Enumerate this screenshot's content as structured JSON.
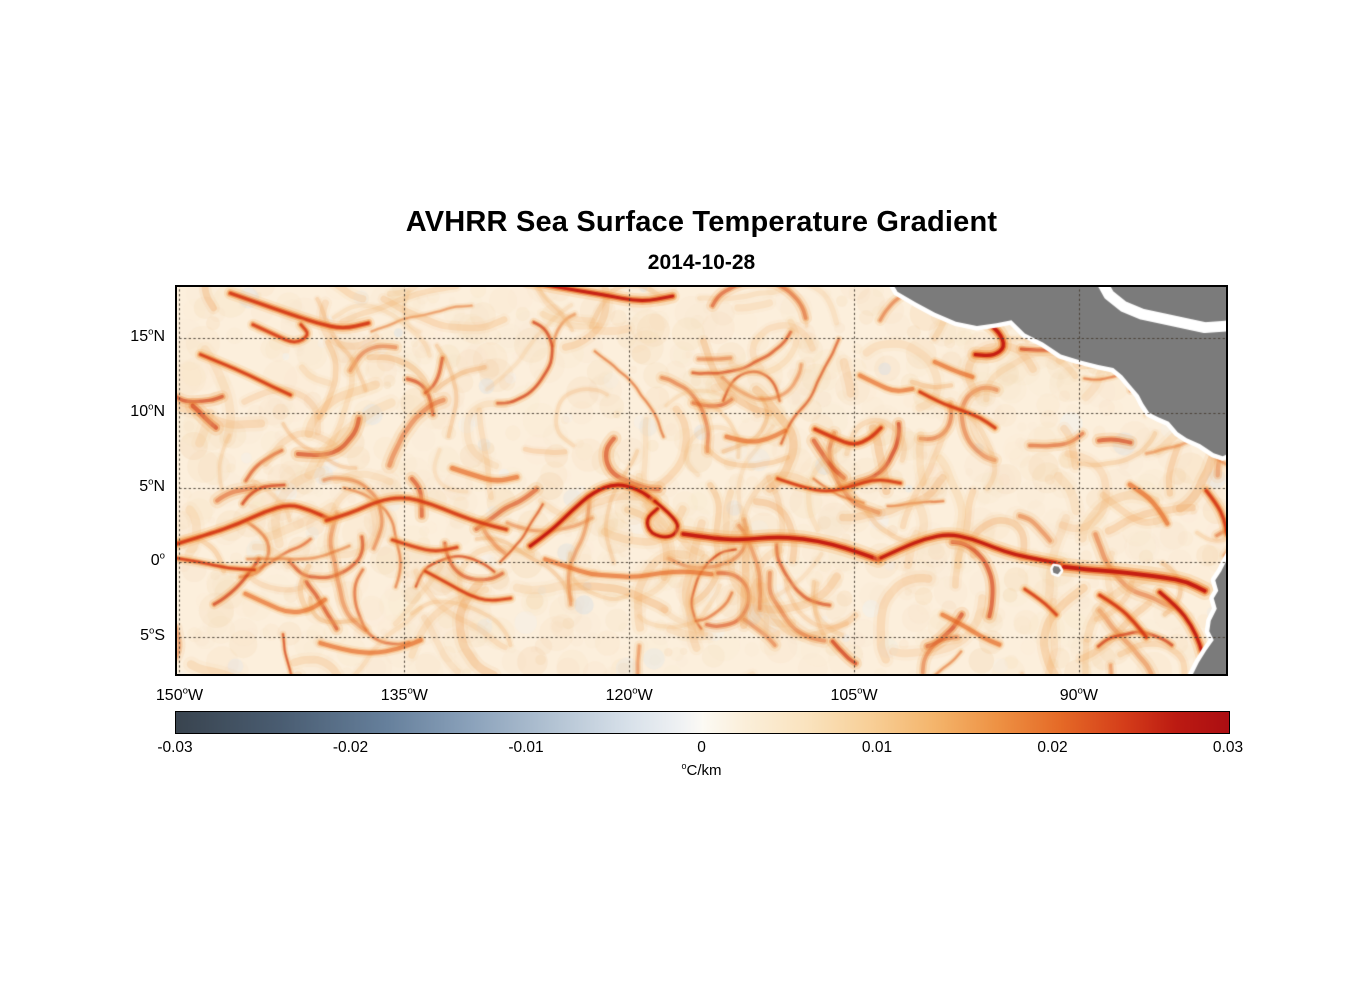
{
  "figure": {
    "title": "AVHRR Sea Surface Temperature Gradient",
    "date": "2014-10-28"
  },
  "deg_symbol": "o",
  "chart_data": {
    "type": "heatmap",
    "title": "AVHRR Sea Surface Temperature Gradient",
    "subtitle": "2014-10-28",
    "xlabel": "",
    "ylabel": "",
    "x_range": [
      -150.3,
      -80.05
    ],
    "y_range": [
      -7.6,
      18.55
    ],
    "x_ticks": [
      {
        "value": -150,
        "num": "150",
        "hemi": "W"
      },
      {
        "value": -135,
        "num": "135",
        "hemi": "W"
      },
      {
        "value": -120,
        "num": "120",
        "hemi": "W"
      },
      {
        "value": -105,
        "num": "105",
        "hemi": "W"
      },
      {
        "value": -90,
        "num": "90",
        "hemi": "W"
      }
    ],
    "y_ticks": [
      {
        "value": 15,
        "num": "15",
        "hemi": "N"
      },
      {
        "value": 10,
        "num": "10",
        "hemi": "N"
      },
      {
        "value": 5,
        "num": "5",
        "hemi": "N"
      },
      {
        "value": 0,
        "num": "0",
        "hemi": ""
      },
      {
        "value": -5,
        "num": "5",
        "hemi": "S"
      }
    ],
    "grid": {
      "color": "rgba(72,62,52,0.95)",
      "dash": [
        1.5,
        3.2
      ]
    },
    "field": {
      "base": "#FCEFDC",
      "mottle": [
        "#F8E3C6",
        "#F6DAB4",
        "#F3CFA0",
        "#F0C38C"
      ],
      "negative_tints": [
        "#EDF1F5",
        "#DFE7EE",
        "#D2DDE8"
      ]
    },
    "colorbar": {
      "min": -0.03,
      "max": 0.03,
      "unit": "C/km",
      "ticks": [
        {
          "value": -0.03,
          "label": "-0.03"
        },
        {
          "value": -0.02,
          "label": "-0.02"
        },
        {
          "value": -0.01,
          "label": "-0.01"
        },
        {
          "value": 0,
          "label": "0"
        },
        {
          "value": 0.01,
          "label": "0.01"
        },
        {
          "value": 0.02,
          "label": "0.02"
        },
        {
          "value": 0.03,
          "label": "0.03"
        }
      ],
      "stops": [
        [
          0.0,
          "#39444F"
        ],
        [
          0.1,
          "#4A5D72"
        ],
        [
          0.2,
          "#66809C"
        ],
        [
          0.28,
          "#8BA2BB"
        ],
        [
          0.36,
          "#B4C4D4"
        ],
        [
          0.43,
          "#D8E1EA"
        ],
        [
          0.48,
          "#F0F2F4"
        ],
        [
          0.5,
          "#FCFAF4"
        ],
        [
          0.54,
          "#FBEFDA"
        ],
        [
          0.6,
          "#FAE3BE"
        ],
        [
          0.66,
          "#F8CF97"
        ],
        [
          0.72,
          "#F4B56C"
        ],
        [
          0.78,
          "#EE9244"
        ],
        [
          0.84,
          "#E56A27"
        ],
        [
          0.9,
          "#D53E1A"
        ],
        [
          0.95,
          "#BC1B12"
        ],
        [
          1.0,
          "#AC0E13"
        ]
      ]
    },
    "fronts": [
      {
        "s": 0.85,
        "w": 1.0,
        "pts": [
          [
            -150.3,
            1.2
          ],
          [
            -148,
            1.9
          ],
          [
            -146,
            2.6
          ],
          [
            -144.3,
            3.4
          ],
          [
            -142.7,
            3.9
          ],
          [
            -141.3,
            3.5
          ],
          [
            -140,
            2.9
          ]
        ]
      },
      {
        "s": 0.7,
        "w": 1.0,
        "pts": [
          [
            -140.2,
            2.8
          ],
          [
            -138.5,
            3.3
          ],
          [
            -136.8,
            4.1
          ],
          [
            -135,
            4.4
          ],
          [
            -133.2,
            3.9
          ],
          [
            -131.5,
            3.2
          ],
          [
            -129.8,
            2.6
          ],
          [
            -128.2,
            2.2
          ]
        ]
      },
      {
        "s": 0.55,
        "w": 0.8,
        "pts": [
          [
            -150.3,
            0.3
          ],
          [
            -148.5,
            0.0
          ],
          [
            -146.8,
            -0.4
          ],
          [
            -145,
            -0.5
          ]
        ]
      },
      {
        "s": 1.0,
        "w": 1.15,
        "pts": [
          [
            -126.6,
            1.1
          ],
          [
            -125.2,
            2.1
          ],
          [
            -123.8,
            3.5
          ],
          [
            -122.4,
            4.7
          ],
          [
            -120.9,
            5.3
          ],
          [
            -119.4,
            4.9
          ],
          [
            -118.3,
            4.1
          ]
        ]
      },
      {
        "s": 0.95,
        "w": 1.0,
        "pts": [
          [
            -118.3,
            4.1
          ],
          [
            -117.2,
            3.2
          ],
          [
            -116.6,
            2.3
          ],
          [
            -117.3,
            1.6
          ],
          [
            -118.6,
            1.9
          ],
          [
            -118.9,
            2.9
          ],
          [
            -118.1,
            3.6
          ]
        ]
      },
      {
        "s": 1.0,
        "w": 1.3,
        "pts": [
          [
            -116.4,
            1.9
          ],
          [
            -114.4,
            1.6
          ],
          [
            -112.4,
            1.5
          ],
          [
            -110.4,
            1.7
          ],
          [
            -108.4,
            1.6
          ],
          [
            -106.4,
            1.2
          ],
          [
            -104.8,
            0.7
          ],
          [
            -103.4,
            0.2
          ]
        ]
      },
      {
        "s": 0.95,
        "w": 1.2,
        "pts": [
          [
            -103.2,
            0.3
          ],
          [
            -101.7,
            1.0
          ],
          [
            -100.2,
            1.6
          ],
          [
            -98.7,
            1.9
          ],
          [
            -97.2,
            1.6
          ],
          [
            -95.7,
            1.0
          ],
          [
            -94.2,
            0.5
          ],
          [
            -92.7,
            0.2
          ],
          [
            -91.2,
            -0.1
          ]
        ]
      },
      {
        "s": 1.0,
        "w": 1.4,
        "pts": [
          [
            -91.0,
            -0.3
          ],
          [
            -89.3,
            -0.5
          ],
          [
            -87.6,
            -0.6
          ],
          [
            -86.0,
            -0.8
          ],
          [
            -84.3,
            -1.0
          ],
          [
            -82.8,
            -1.3
          ],
          [
            -81.6,
            -1.9
          ]
        ]
      },
      {
        "s": 0.5,
        "w": 0.8,
        "pts": [
          [
            -125.6,
            0.2
          ],
          [
            -124.1,
            -0.3
          ],
          [
            -122.6,
            -0.8
          ],
          [
            -121.1,
            -0.9
          ],
          [
            -119.6,
            -1.0
          ],
          [
            -117.9,
            -0.7
          ],
          [
            -116.2,
            -0.6
          ],
          [
            -114.5,
            -0.8
          ]
        ]
      },
      {
        "s": 0.9,
        "w": 1.1,
        "pts": [
          [
            -126.8,
            18.8
          ],
          [
            -124.2,
            18.3
          ],
          [
            -121.7,
            17.9
          ],
          [
            -119.2,
            17.4
          ],
          [
            -117.1,
            17.8
          ]
        ]
      },
      {
        "s": 0.8,
        "w": 1.0,
        "pts": [
          [
            -146.6,
            18.0
          ],
          [
            -144.6,
            17.3
          ],
          [
            -142.6,
            16.6
          ],
          [
            -140.8,
            16.0
          ],
          [
            -139.1,
            15.6
          ],
          [
            -137.4,
            16.0
          ]
        ]
      },
      {
        "s": 0.7,
        "w": 0.9,
        "pts": [
          [
            -148.6,
            13.9
          ],
          [
            -146.9,
            13.2
          ],
          [
            -145.3,
            12.5
          ],
          [
            -143.9,
            11.8
          ],
          [
            -142.6,
            11.2
          ]
        ]
      },
      {
        "s": 0.6,
        "w": 0.9,
        "pts": [
          [
            -145.1,
            15.9
          ],
          [
            -143.6,
            15.2
          ],
          [
            -142.3,
            14.6
          ],
          [
            -141.3,
            15.2
          ],
          [
            -141.9,
            15.9
          ]
        ]
      },
      {
        "s": 1.0,
        "w": 1.25,
        "pts": [
          [
            -97.6,
            16.7
          ],
          [
            -96.3,
            16.2
          ],
          [
            -95.3,
            15.4
          ],
          [
            -94.9,
            14.4
          ],
          [
            -95.7,
            13.8
          ],
          [
            -96.9,
            13.9
          ]
        ]
      },
      {
        "s": 0.7,
        "w": 0.9,
        "pts": [
          [
            -100.6,
            11.4
          ],
          [
            -99.3,
            10.7
          ],
          [
            -97.9,
            10.2
          ],
          [
            -96.6,
            9.7
          ],
          [
            -95.6,
            9.0
          ]
        ]
      },
      {
        "s": 0.85,
        "w": 1.0,
        "pts": [
          [
            -107.6,
            8.9
          ],
          [
            -106.3,
            8.3
          ],
          [
            -105.0,
            7.8
          ],
          [
            -103.9,
            8.3
          ],
          [
            -103.2,
            9.0
          ]
        ]
      },
      {
        "s": 0.6,
        "w": 0.85,
        "pts": [
          [
            -110.1,
            5.6
          ],
          [
            -108.4,
            5.0
          ],
          [
            -106.7,
            4.7
          ],
          [
            -105.1,
            5.1
          ],
          [
            -103.5,
            5.6
          ],
          [
            -101.9,
            5.3
          ]
        ]
      },
      {
        "s": 0.8,
        "w": 1.0,
        "pts": [
          [
            -88.6,
            -2.2
          ],
          [
            -87.3,
            -3.0
          ],
          [
            -86.3,
            -4.0
          ],
          [
            -85.5,
            -5.0
          ]
        ]
      },
      {
        "s": 0.9,
        "w": 1.15,
        "pts": [
          [
            -84.6,
            -2.0
          ],
          [
            -83.4,
            -3.0
          ],
          [
            -82.5,
            -4.2
          ],
          [
            -81.9,
            -5.5
          ],
          [
            -81.6,
            -6.8
          ]
        ]
      },
      {
        "s": 0.5,
        "w": 0.8,
        "pts": [
          [
            -140.6,
            -5.4
          ],
          [
            -138.9,
            -5.9
          ],
          [
            -137.1,
            -6.1
          ],
          [
            -135.4,
            -5.8
          ],
          [
            -133.9,
            -5.2
          ]
        ]
      },
      {
        "s": 0.55,
        "w": 0.8,
        "pts": [
          [
            -133.6,
            -0.6
          ],
          [
            -132.1,
            -1.4
          ],
          [
            -130.7,
            -2.2
          ],
          [
            -129.4,
            -2.6
          ],
          [
            -127.9,
            -2.4
          ]
        ]
      },
      {
        "s": 0.45,
        "w": 0.8,
        "pts": [
          [
            -145.6,
            -2.1
          ],
          [
            -144.1,
            -2.8
          ],
          [
            -142.7,
            -3.4
          ],
          [
            -141.3,
            -3.2
          ],
          [
            -140.3,
            -2.5
          ]
        ]
      },
      {
        "s": 0.5,
        "w": 0.8,
        "pts": [
          [
            -99.1,
            -3.5
          ],
          [
            -97.7,
            -4.2
          ],
          [
            -96.5,
            -5.0
          ],
          [
            -95.3,
            -5.5
          ]
        ]
      },
      {
        "s": 0.55,
        "w": 0.85,
        "pts": [
          [
            -93.6,
            -1.8
          ],
          [
            -92.4,
            -2.6
          ],
          [
            -91.5,
            -3.5
          ]
        ]
      },
      {
        "s": 0.5,
        "w": 0.85,
        "pts": [
          [
            -86.6,
            5.2
          ],
          [
            -85.5,
            4.5
          ],
          [
            -84.7,
            3.6
          ],
          [
            -84.1,
            2.6
          ]
        ]
      },
      {
        "s": 0.45,
        "w": 0.8,
        "pts": [
          [
            -104.6,
            12.5
          ],
          [
            -103.4,
            11.9
          ],
          [
            -102.3,
            11.4
          ],
          [
            -101.1,
            11.6
          ]
        ]
      },
      {
        "s": 0.5,
        "w": 0.8,
        "pts": [
          [
            -99.6,
            13.4
          ],
          [
            -98.3,
            12.8
          ],
          [
            -97.1,
            12.4
          ]
        ]
      },
      {
        "s": 0.45,
        "w": 0.8,
        "pts": [
          [
            -113.5,
            8.4
          ],
          [
            -112.1,
            8.0
          ],
          [
            -110.8,
            8.2
          ],
          [
            -109.6,
            8.8
          ]
        ]
      },
      {
        "s": 0.5,
        "w": 0.9,
        "pts": [
          [
            -131.8,
            6.3
          ],
          [
            -130.3,
            5.8
          ],
          [
            -128.9,
            5.4
          ],
          [
            -127.5,
            5.7
          ]
        ]
      },
      {
        "s": 0.55,
        "w": 0.9,
        "pts": [
          [
            -135.8,
            1.5
          ],
          [
            -134.3,
            1.0
          ],
          [
            -132.9,
            0.7
          ],
          [
            -131.5,
            1.0
          ]
        ]
      },
      {
        "s": 0.75,
        "w": 1.0,
        "pts": [
          [
            -81.5,
            4.8
          ],
          [
            -80.8,
            3.9
          ],
          [
            -80.3,
            2.9
          ],
          [
            -80.1,
            1.9
          ]
        ]
      }
    ],
    "land": {
      "color": "#7B7B7B",
      "halo": "#FFFFFF",
      "central_america": [
        [
          -102.8,
          19.3
        ],
        [
          -102.1,
          18.1
        ],
        [
          -100.9,
          17.4
        ],
        [
          -99.6,
          16.7
        ],
        [
          -98.2,
          16.1
        ],
        [
          -96.8,
          15.8
        ],
        [
          -95.5,
          16.0
        ],
        [
          -94.5,
          16.2
        ],
        [
          -93.6,
          15.3
        ],
        [
          -92.4,
          14.7
        ],
        [
          -91.2,
          13.9
        ],
        [
          -89.9,
          13.5
        ],
        [
          -88.7,
          13.2
        ],
        [
          -87.7,
          13.0
        ],
        [
          -87.1,
          12.5
        ],
        [
          -86.6,
          11.9
        ],
        [
          -86.0,
          11.2
        ],
        [
          -85.7,
          10.6
        ],
        [
          -85.3,
          10.0
        ],
        [
          -84.7,
          9.7
        ],
        [
          -84.0,
          9.4
        ],
        [
          -83.4,
          8.7
        ],
        [
          -82.8,
          8.3
        ],
        [
          -81.9,
          7.9
        ],
        [
          -81.0,
          7.3
        ],
        [
          -80.4,
          7.1
        ],
        [
          -79.7,
          7.4
        ]
      ],
      "central_america_close": [
        [
          -79.4,
          7.6
        ],
        [
          -79.4,
          19.6
        ]
      ],
      "south_america": [
        [
          -79.7,
          0.9
        ],
        [
          -80.2,
          0.0
        ],
        [
          -80.5,
          -0.6
        ],
        [
          -80.9,
          -1.2
        ],
        [
          -80.7,
          -1.9
        ],
        [
          -81.0,
          -2.4
        ],
        [
          -80.8,
          -3.1
        ],
        [
          -81.2,
          -3.9
        ],
        [
          -81.3,
          -4.6
        ],
        [
          -81.0,
          -5.2
        ],
        [
          -81.5,
          -5.9
        ],
        [
          -82.0,
          -6.7
        ],
        [
          -82.4,
          -7.5
        ],
        [
          -82.7,
          -8.2
        ]
      ],
      "south_america_close": [
        [
          -78.8,
          -8.6
        ],
        [
          -78.8,
          1.0
        ]
      ],
      "galapagos": [
        [
          -91.65,
          -0.25
        ],
        [
          -91.35,
          -0.3
        ],
        [
          -91.2,
          -0.55
        ],
        [
          -91.4,
          -0.8
        ],
        [
          -91.7,
          -0.7
        ],
        [
          -91.75,
          -0.45
        ]
      ],
      "caribbean_channel": [
        [
          -88.6,
          19.0
        ],
        [
          -88.0,
          17.9
        ],
        [
          -87.0,
          17.1
        ],
        [
          -85.8,
          16.6
        ],
        [
          -84.4,
          16.3
        ],
        [
          -83.0,
          16.0
        ],
        [
          -81.6,
          15.7
        ],
        [
          -80.2,
          15.8
        ]
      ]
    }
  }
}
